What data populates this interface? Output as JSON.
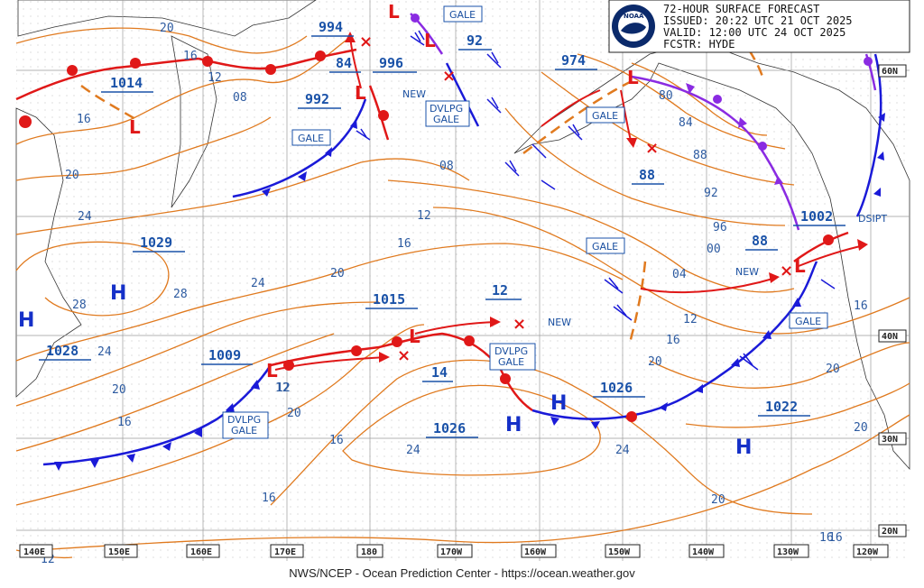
{
  "header": {
    "line1": "72-HOUR SURFACE FORECAST",
    "line2": "ISSUED: 20:22 UTC 21 OCT 2025",
    "line3": "VALID:  12:00 UTC 24 OCT 2025",
    "line4": "FCSTR:  HYDE",
    "logo_text": "NOAA"
  },
  "footer": "NWS/NCEP - Ocean Prediction Center - https://ocean.weather.gov",
  "lon_labels": [
    "140E",
    "150E",
    "160E",
    "170E",
    "180",
    "170W",
    "160W",
    "150W",
    "140W",
    "130W",
    "120W"
  ],
  "lat_labels": [
    "60N",
    "40N",
    "30N",
    "20N"
  ],
  "pressure_centers": [
    "1014",
    "994",
    "84",
    "996",
    "92",
    "974",
    "992",
    "1029",
    "1015",
    "12",
    "1009",
    "14",
    "1026",
    "1026",
    "1022",
    "1028",
    "88",
    "88",
    "1002"
  ],
  "highs": [
    "H",
    "H",
    "H",
    "H",
    "H"
  ],
  "lows": [
    "L",
    "L",
    "L",
    "L",
    "L",
    "L",
    "L",
    "L"
  ],
  "tags": {
    "gale": "GALE",
    "dvlpg_gale_top": "DVLPG",
    "dvlpg_gale_bottom": "GALE",
    "new": "NEW",
    "dsipt": "DSIPT"
  },
  "isobars": [
    "20",
    "16",
    "12",
    "08",
    "16",
    "08",
    "12",
    "16",
    "20",
    "24",
    "24",
    "28",
    "28",
    "24",
    "20",
    "16",
    "12",
    "16",
    "20",
    "24",
    "16",
    "20",
    "12",
    "16",
    "20",
    "80",
    "84",
    "88",
    "92",
    "96",
    "00",
    "04",
    "12",
    "16",
    "20",
    "20",
    "24",
    "20",
    "16",
    "16",
    "12"
  ],
  "colors": {
    "isobar": "#e07a1f",
    "cold_front": "#1a1ad8",
    "warm_front": "#e01818",
    "occluded_front": "#8a2be2",
    "low_track": "#e01818",
    "grid": "#9a9a9a",
    "label_text": "#1a52a8"
  }
}
